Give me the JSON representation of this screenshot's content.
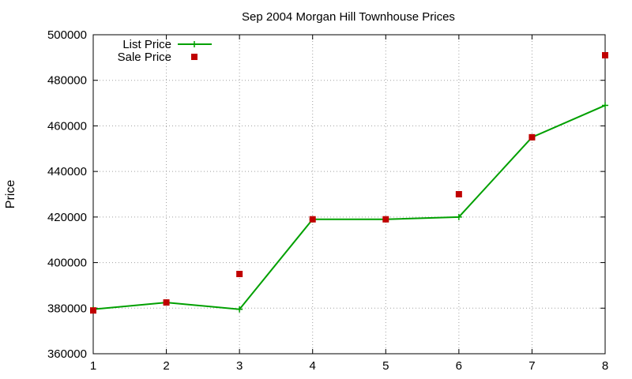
{
  "chart_data": {
    "type": "line",
    "title": "Sep 2004 Morgan Hill Townhouse Prices",
    "xlabel": "",
    "ylabel": "Price",
    "x": [
      1,
      2,
      3,
      4,
      5,
      6,
      7,
      8
    ],
    "xlim": [
      1,
      8
    ],
    "ylim": [
      360000,
      500000
    ],
    "xticks": [
      1,
      2,
      3,
      4,
      5,
      6,
      7,
      8
    ],
    "yticks": [
      360000,
      380000,
      400000,
      420000,
      440000,
      460000,
      480000,
      500000
    ],
    "grid": true,
    "legend_position": "top-left",
    "series": [
      {
        "name": "List Price",
        "style": "line-with-plus-markers",
        "color": "#00a000",
        "values": [
          379500,
          382500,
          379500,
          419000,
          419000,
          420000,
          455000,
          469000
        ]
      },
      {
        "name": "Sale Price",
        "style": "square-markers",
        "color": "#c00000",
        "values": [
          379000,
          382500,
          395000,
          419000,
          419000,
          430000,
          455000,
          491000
        ]
      }
    ]
  }
}
